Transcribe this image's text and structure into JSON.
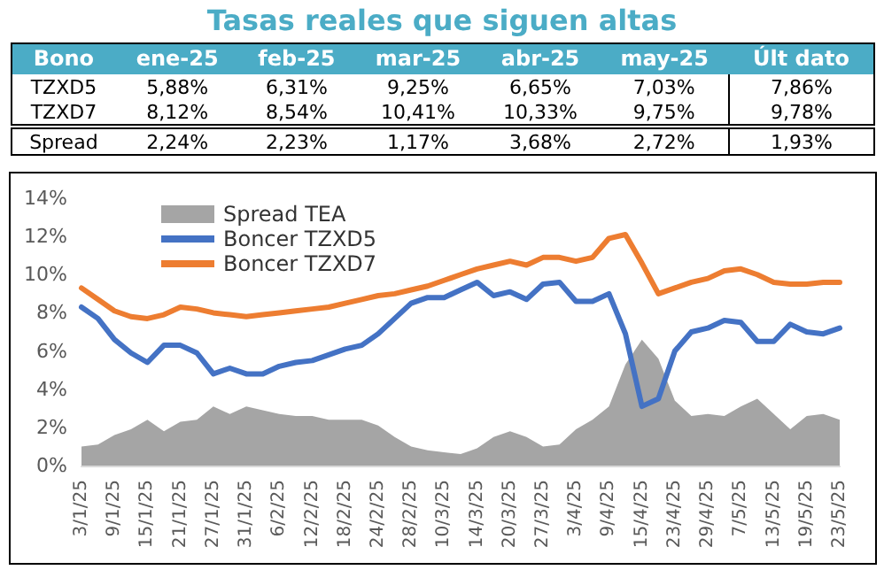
{
  "chart_data": [
    {
      "type": "other",
      "title": "Tasas reales que siguen altas",
      "color": "#4bacc6",
      "categories": [
        "Bono",
        "ene-25",
        "feb-25",
        "mar-25",
        "abr-25",
        "may-25",
        "Últ dato"
      ],
      "annotations": [
        "TZXD5",
        "5,88%",
        "6,31%",
        "9,25%",
        "6,65%",
        "7,03%",
        "7,86%",
        "TZXD7",
        "8,12%",
        "8,54%",
        "10,41%",
        "10,33%",
        "9,75%",
        "9,78%",
        "Spread",
        "2,24%",
        "2,23%",
        "1,17%",
        "3,68%",
        "2,72%",
        "1,93%"
      ]
    },
    {
      "type": "line",
      "categories": [
        "3/1/25",
        null,
        "9/1/25",
        null,
        "15/1/25",
        null,
        "21/1/25",
        null,
        "27/1/25",
        null,
        "31/1/25",
        null,
        "6/2/25",
        null,
        "12/2/25",
        null,
        "18/2/25",
        null,
        "24/2/25",
        null,
        "28/2/25",
        null,
        "10/3/25",
        null,
        "14/3/25",
        null,
        "20/3/25",
        null,
        "27/3/25",
        null,
        "3/4/25",
        null,
        "9/4/25",
        null,
        "15/4/25",
        null,
        "23/4/25",
        null,
        "29/4/25",
        null,
        "7/5/25",
        null,
        "13/5/25",
        null,
        "19/5/25",
        null,
        "23/5/25"
      ],
      "series": [
        {
          "name": "Spread TEA",
          "type": "area",
          "color": "#a5a5a5",
          "values": [
            1.0,
            1.1,
            1.6,
            1.9,
            2.4,
            1.8,
            2.3,
            2.4,
            3.1,
            2.7,
            3.1,
            2.9,
            2.7,
            2.6,
            2.6,
            2.4,
            2.4,
            2.4,
            2.1,
            1.5,
            1.0,
            0.8,
            0.7,
            0.6,
            0.9,
            1.5,
            1.8,
            1.5,
            1.0,
            1.1,
            1.9,
            2.4,
            3.1,
            5.3,
            6.6,
            5.6,
            3.4,
            2.6,
            2.7,
            2.6,
            3.1,
            3.5,
            2.7,
            1.9,
            2.6,
            2.7,
            2.4
          ]
        },
        {
          "name": "Boncer TZXD5",
          "type": "line",
          "color": "#4472c4",
          "values": [
            8.3,
            7.7,
            6.6,
            5.9,
            5.4,
            6.3,
            6.3,
            5.9,
            4.8,
            5.1,
            4.8,
            4.8,
            5.2,
            5.4,
            5.5,
            5.8,
            6.1,
            6.3,
            6.9,
            7.7,
            8.5,
            8.8,
            8.8,
            9.2,
            9.6,
            8.9,
            9.1,
            8.7,
            9.5,
            9.6,
            8.6,
            8.6,
            9.0,
            6.9,
            3.1,
            3.5,
            6.0,
            7.0,
            7.2,
            7.6,
            7.5,
            6.5,
            6.5,
            7.4,
            7.0,
            6.9,
            7.2
          ]
        },
        {
          "name": "Boncer TZXD7",
          "type": "line",
          "color": "#ed7d31",
          "values": [
            9.3,
            8.7,
            8.1,
            7.8,
            7.7,
            7.9,
            8.3,
            8.2,
            8.0,
            7.9,
            7.8,
            7.9,
            8.0,
            8.1,
            8.2,
            8.3,
            8.5,
            8.7,
            8.9,
            9.0,
            9.2,
            9.4,
            9.7,
            10.0,
            10.3,
            10.5,
            10.7,
            10.5,
            10.9,
            10.9,
            10.7,
            10.9,
            11.9,
            12.1,
            10.6,
            9.0,
            9.3,
            9.6,
            9.8,
            10.2,
            10.3,
            10.0,
            9.6,
            9.5,
            9.5,
            9.6,
            9.6
          ]
        }
      ],
      "ylim": [
        0,
        14
      ],
      "yticks": [
        {
          "value": 0,
          "label": "0%"
        },
        {
          "value": 2,
          "label": "2%"
        },
        {
          "value": 4,
          "label": "4%"
        },
        {
          "value": 6,
          "label": "6%"
        },
        {
          "value": 8,
          "label": "8%"
        },
        {
          "value": 10,
          "label": "10%"
        },
        {
          "value": 12,
          "label": "12%"
        },
        {
          "value": 14,
          "label": "14%"
        }
      ],
      "grid": false,
      "legend": "top left",
      "marker": "none",
      "line_style": "solid"
    }
  ]
}
